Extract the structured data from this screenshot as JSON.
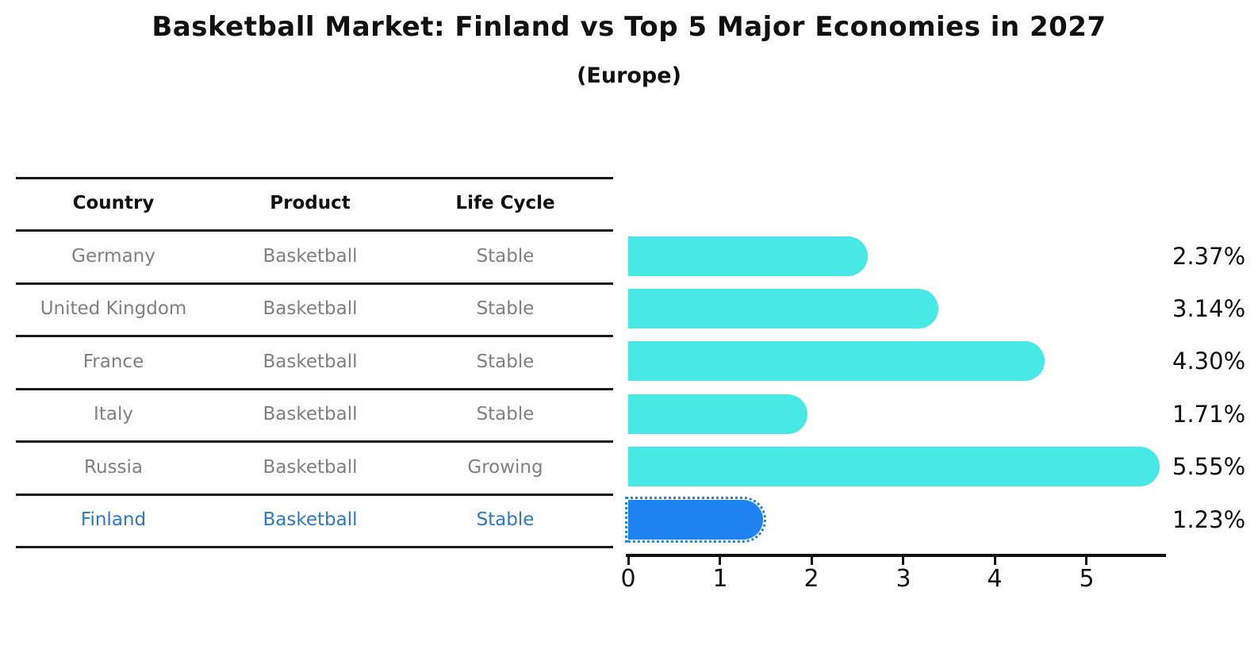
{
  "title": "Basketball Market: Finland vs Top 5 Major Economies in 2027",
  "subtitle": "(Europe)",
  "table": {
    "headers": [
      "Country",
      "Product",
      "Life Cycle"
    ],
    "rows": [
      {
        "country": "Germany",
        "product": "Basketball",
        "life_cycle": "Stable",
        "highlight": false
      },
      {
        "country": "United Kingdom",
        "product": "Basketball",
        "life_cycle": "Stable",
        "highlight": false
      },
      {
        "country": "France",
        "product": "Basketball",
        "life_cycle": "Stable",
        "highlight": false
      },
      {
        "country": "Italy",
        "product": "Basketball",
        "life_cycle": "Stable",
        "highlight": false
      },
      {
        "country": "Russia",
        "product": "Basketball",
        "life_cycle": "Growing",
        "highlight": false
      },
      {
        "country": "Finland",
        "product": "Basketball",
        "life_cycle": "Stable",
        "highlight": true
      }
    ]
  },
  "chart_data": {
    "type": "bar",
    "orientation": "horizontal",
    "title": "Basketball Market: Finland vs Top 5 Major Economies in 2027",
    "subtitle": "(Europe)",
    "categories": [
      "Germany",
      "United Kingdom",
      "France",
      "Italy",
      "Russia",
      "Finland"
    ],
    "values": [
      2.37,
      3.14,
      4.3,
      1.71,
      5.55,
      1.23
    ],
    "value_labels": [
      "2.37%",
      "3.14%",
      "4.30%",
      "1.71%",
      "5.55%",
      "1.23%"
    ],
    "xlabel": "",
    "ylabel": "",
    "xticks": [
      "0",
      "1",
      "2",
      "3",
      "4",
      "5"
    ],
    "xlim": [
      0,
      5.87
    ],
    "grid": false,
    "legend": false,
    "bar_color": "#48E8E4",
    "highlight_color": "#1E82F0",
    "highlight_index": 5
  },
  "colors": {
    "row_text": "#808080",
    "highlight_text": "#2E78C8",
    "header_text": "#111111",
    "axis": "#111111"
  }
}
